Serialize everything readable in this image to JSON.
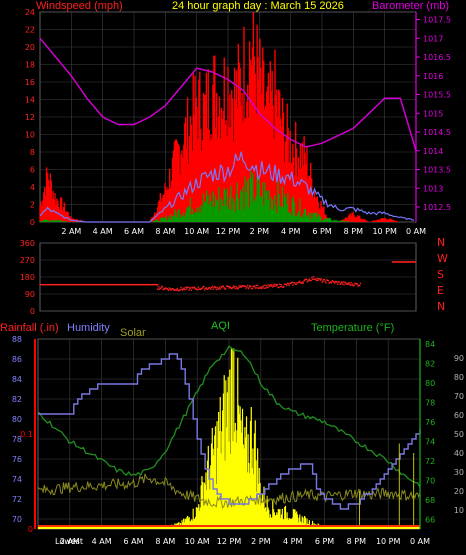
{
  "header": {
    "windspeed": "Windspeed (mph)",
    "title": "24 hour graph day : March 15 2026",
    "barometer": "Barometer (mb)"
  },
  "legend2": {
    "rainfall": "Rainfall (.in)",
    "humidity": "Humidity",
    "solar": "Solar",
    "aqi": "AQI",
    "temperature": "Temperature (°F)"
  },
  "colors": {
    "wind_gust": "#ff0000",
    "wind_avg": "#7878ff",
    "wind_low": "#00a000",
    "barometer": "#d000d0",
    "direction": "#ff2020",
    "humidity": "#7878e0",
    "solar": "#ffff00",
    "temperature": "#209020",
    "uv": "#8a8a20",
    "rain": "#ff0000",
    "grid": "#404040",
    "axis_left1": "#ff2020",
    "axis_right1": "#e000e0",
    "axis_temp": "#20b020"
  },
  "chart_data": [
    {
      "type": "line",
      "name": "wind-barometer",
      "x_ticks": [
        "2 AM",
        "4 AM",
        "6 AM",
        "8 AM",
        "10 AM",
        "12 PM",
        "2 PM",
        "4 PM",
        "6 PM",
        "8 PM",
        "10 PM",
        "0 AM"
      ],
      "x_range": [
        0,
        24
      ],
      "y_left": {
        "ticks": [
          "0",
          "2",
          "4",
          "6",
          "8",
          "10",
          "12",
          "14",
          "16",
          "18",
          "20",
          "22",
          "24"
        ],
        "range": [
          0,
          24
        ]
      },
      "y_right": {
        "ticks": [
          "1012.5",
          "1013",
          "1013.5",
          "1014",
          "1014.5",
          "1015",
          "1015.5",
          "1016",
          "1016.5",
          "1017",
          "1017.5"
        ],
        "range": [
          1012.1,
          1017.7
        ]
      },
      "series": [
        {
          "key": "gust",
          "axis": "left",
          "points": [
            [
              0,
              2
            ],
            [
              0.5,
              6
            ],
            [
              1,
              3
            ],
            [
              1.5,
              2
            ],
            [
              2,
              0.5
            ],
            [
              3,
              0
            ],
            [
              4,
              0
            ],
            [
              5,
              0
            ],
            [
              6,
              0
            ],
            [
              7,
              0
            ],
            [
              7.5,
              2
            ],
            [
              8,
              4
            ],
            [
              8.5,
              7
            ],
            [
              9,
              10
            ],
            [
              9.5,
              12
            ],
            [
              10,
              15
            ],
            [
              10.5,
              14
            ],
            [
              11,
              17
            ],
            [
              11.5,
              16
            ],
            [
              12,
              18
            ],
            [
              12.5,
              16
            ],
            [
              13,
              19
            ],
            [
              13.5,
              22
            ],
            [
              14,
              18
            ],
            [
              14.5,
              14
            ],
            [
              15,
              16
            ],
            [
              15.5,
              12
            ],
            [
              16,
              10
            ],
            [
              16.5,
              9
            ],
            [
              17,
              8
            ],
            [
              17.5,
              4
            ],
            [
              18,
              2
            ],
            [
              18.5,
              0
            ],
            [
              19,
              0
            ],
            [
              20,
              1
            ],
            [
              21,
              0
            ],
            [
              22,
              0.5
            ],
            [
              23,
              0
            ],
            [
              24,
              0
            ]
          ]
        },
        {
          "key": "avg",
          "axis": "left",
          "points": [
            [
              0,
              0.8
            ],
            [
              0.5,
              1.5
            ],
            [
              1,
              1
            ],
            [
              2,
              0.2
            ],
            [
              3,
              0
            ],
            [
              6,
              0
            ],
            [
              7,
              0
            ],
            [
              8,
              1.5
            ],
            [
              9,
              3
            ],
            [
              10,
              4.5
            ],
            [
              11,
              5.5
            ],
            [
              12,
              6
            ],
            [
              13,
              7.5
            ],
            [
              14,
              6
            ],
            [
              15,
              5.5
            ],
            [
              16,
              5
            ],
            [
              17,
              4
            ],
            [
              18,
              2.5
            ],
            [
              19,
              1.5
            ],
            [
              20,
              1.5
            ],
            [
              21,
              1
            ],
            [
              22,
              1
            ],
            [
              23,
              0.5
            ],
            [
              24,
              0.2
            ]
          ]
        },
        {
          "key": "low",
          "axis": "left",
          "points": [
            [
              0,
              0.2
            ],
            [
              1,
              0.3
            ],
            [
              2,
              0
            ],
            [
              7,
              0
            ],
            [
              8,
              0.5
            ],
            [
              9,
              1.5
            ],
            [
              10,
              2.5
            ],
            [
              11,
              3
            ],
            [
              12,
              3.5
            ],
            [
              13,
              4.5
            ],
            [
              14,
              4
            ],
            [
              15,
              3.5
            ],
            [
              16,
              2.5
            ],
            [
              17,
              1.5
            ],
            [
              18,
              0.5
            ],
            [
              19,
              0.2
            ],
            [
              20,
              0
            ],
            [
              24,
              0
            ]
          ]
        },
        {
          "key": "barometer",
          "axis": "right",
          "points": [
            [
              0,
              1017.0
            ],
            [
              1,
              1016.5
            ],
            [
              2,
              1016.0
            ],
            [
              3,
              1015.4
            ],
            [
              4,
              1014.9
            ],
            [
              5,
              1014.7
            ],
            [
              6,
              1014.7
            ],
            [
              7,
              1014.9
            ],
            [
              8,
              1015.2
            ],
            [
              9,
              1015.7
            ],
            [
              10,
              1016.2
            ],
            [
              11,
              1016.1
            ],
            [
              12,
              1015.9
            ],
            [
              13,
              1015.6
            ],
            [
              14,
              1015.0
            ],
            [
              15,
              1014.6
            ],
            [
              16,
              1014.3
            ],
            [
              17,
              1014.1
            ],
            [
              18,
              1014.2
            ],
            [
              19,
              1014.4
            ],
            [
              20,
              1014.6
            ],
            [
              21,
              1015.0
            ],
            [
              22,
              1015.4
            ],
            [
              23,
              1015.4
            ],
            [
              23.5,
              1014.7
            ],
            [
              24,
              1014.0
            ]
          ]
        }
      ]
    },
    {
      "type": "scatter",
      "name": "wind-direction",
      "y_ticks": [
        "360",
        "270",
        "180",
        "90",
        "0"
      ],
      "y_range": [
        0,
        360
      ],
      "compass": [
        "N",
        "W",
        "S",
        "E",
        "N"
      ],
      "segments": [
        {
          "points": [
            [
              0,
              140
            ],
            [
              5,
              140
            ],
            [
              7.5,
              140
            ]
          ]
        },
        {
          "points": [
            [
              7.5,
              125
            ],
            [
              8.5,
              115
            ],
            [
              10,
              120
            ],
            [
              12,
              125
            ],
            [
              14,
              128
            ],
            [
              15.5,
              135
            ],
            [
              16.5,
              150
            ],
            [
              17.5,
              175
            ],
            [
              18,
              160
            ],
            [
              19.5,
              145
            ],
            [
              20.5,
              140
            ]
          ]
        },
        {
          "points": [
            [
              22.5,
              260
            ],
            [
              24,
              260
            ]
          ]
        }
      ]
    },
    {
      "type": "line",
      "name": "humidity-solar-temperature",
      "x_ticks": [
        "2 AM",
        "4 AM",
        "6 AM",
        "8 AM",
        "10 AM",
        "12 PM",
        "2 PM",
        "4 PM",
        "6 PM",
        "8 PM",
        "10 PM",
        "0 AM"
      ],
      "x_range": [
        0,
        24
      ],
      "y_humidity": {
        "ticks": [
          "70",
          "72",
          "74",
          "76",
          "78",
          "80",
          "82",
          "84",
          "86",
          "88"
        ],
        "range": [
          69,
          88
        ]
      },
      "y_temp": {
        "ticks": [
          "66",
          "68",
          "70",
          "72",
          "74",
          "76",
          "78",
          "80",
          "82",
          "84"
        ],
        "range": [
          65,
          84.5
        ]
      },
      "y_percent": {
        "ticks": [
          "10",
          "20",
          "30",
          "40",
          "50",
          "60",
          "70",
          "80",
          "90"
        ],
        "range": [
          0,
          100
        ]
      },
      "rain_ticks": [
        "0",
        "0.1"
      ],
      "rain_tick_values": [
        0,
        0.1
      ],
      "rain_range": [
        0,
        0.2
      ],
      "x_extra_label": "Lowest",
      "series": [
        {
          "key": "humidity",
          "axis": "humidity",
          "points": [
            [
              0,
              80.5
            ],
            [
              2,
              80.5
            ],
            [
              2.5,
              82
            ],
            [
              4,
              83.5
            ],
            [
              6,
              83.5
            ],
            [
              6.5,
              85
            ],
            [
              8,
              86
            ],
            [
              8.5,
              86.5
            ],
            [
              9,
              85
            ],
            [
              9.5,
              82
            ],
            [
              10,
              78
            ],
            [
              10.5,
              75
            ],
            [
              11,
              73
            ],
            [
              11.5,
              72
            ],
            [
              12,
              71.5
            ],
            [
              13,
              71.5
            ],
            [
              13.5,
              72
            ],
            [
              14,
              72.5
            ],
            [
              15,
              74
            ],
            [
              16,
              75
            ],
            [
              17,
              75.5
            ],
            [
              17.5,
              73
            ],
            [
              18,
              72
            ],
            [
              19,
              71
            ],
            [
              20,
              71.5
            ],
            [
              21,
              73
            ],
            [
              22,
              75
            ],
            [
              23,
              77
            ],
            [
              24,
              79
            ]
          ]
        },
        {
          "key": "temperature",
          "axis": "temp",
          "points": [
            [
              0,
              77
            ],
            [
              1,
              75.5
            ],
            [
              2,
              74
            ],
            [
              3,
              73
            ],
            [
              4,
              72
            ],
            [
              5,
              71
            ],
            [
              6,
              70.5
            ],
            [
              7,
              71
            ],
            [
              8,
              73
            ],
            [
              9,
              76
            ],
            [
              10,
              79
            ],
            [
              11,
              82
            ],
            [
              12,
              83.5
            ],
            [
              13,
              83
            ],
            [
              14,
              80
            ],
            [
              15,
              78
            ],
            [
              16,
              77
            ],
            [
              17,
              76.5
            ],
            [
              18,
              76
            ],
            [
              19,
              75
            ],
            [
              20,
              74
            ],
            [
              21,
              73
            ],
            [
              22,
              72
            ],
            [
              23,
              70.5
            ],
            [
              24,
              69.5
            ]
          ]
        },
        {
          "key": "solar",
          "axis": "percent",
          "points": [
            [
              0,
              0
            ],
            [
              7.5,
              0
            ],
            [
              8,
              1
            ],
            [
              9,
              3
            ],
            [
              10,
              10
            ],
            [
              10.5,
              28
            ],
            [
              11,
              40
            ],
            [
              11.5,
              55
            ],
            [
              12,
              70
            ],
            [
              12.3,
              90
            ],
            [
              12.6,
              60
            ],
            [
              13,
              40
            ],
            [
              13.5,
              55
            ],
            [
              14,
              20
            ],
            [
              14.5,
              12
            ],
            [
              15,
              10
            ],
            [
              16,
              8
            ],
            [
              17,
              4
            ],
            [
              18,
              1
            ],
            [
              18.5,
              0
            ],
            [
              24,
              0
            ]
          ]
        },
        {
          "key": "uv",
          "axis": "percent",
          "points": [
            [
              0,
              20
            ],
            [
              2,
              22
            ],
            [
              4,
              23
            ],
            [
              6,
              24
            ],
            [
              7,
              27
            ],
            [
              8,
              24
            ],
            [
              9,
              19
            ],
            [
              10,
              16
            ],
            [
              11,
              14
            ],
            [
              12,
              14
            ],
            [
              13,
              15
            ],
            [
              14,
              16
            ],
            [
              15,
              16
            ],
            [
              16,
              17
            ],
            [
              17,
              18
            ],
            [
              18,
              17
            ],
            [
              19,
              18
            ],
            [
              20,
              19
            ],
            [
              21,
              18
            ],
            [
              22,
              19
            ],
            [
              23,
              18
            ],
            [
              24,
              17
            ]
          ]
        }
      ],
      "rain_bars": [
        [
          20.2,
          0.04
        ],
        [
          22.7,
          0.09
        ],
        [
          23.6,
          0.08
        ]
      ]
    }
  ]
}
